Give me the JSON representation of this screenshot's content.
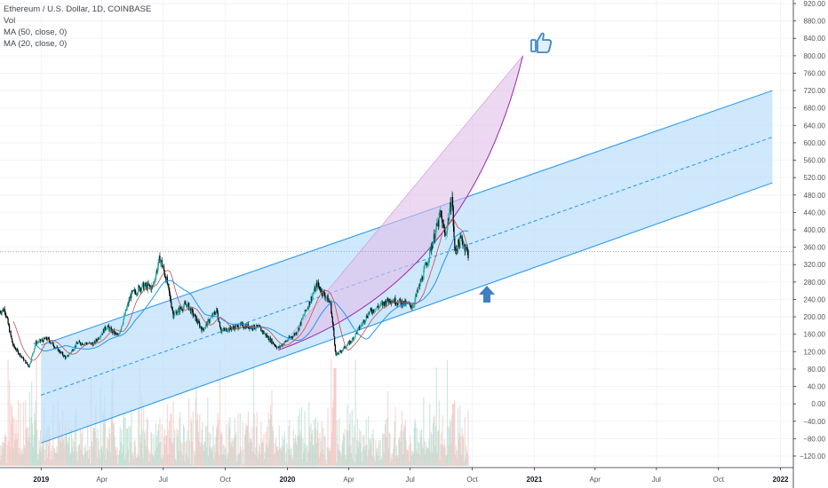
{
  "legend": {
    "title": "Ethereum / U.S. Dollar, 1D, COINBASE",
    "vol": "Vol",
    "ma50": "MA (50, close, 0)",
    "ma20": "MA (20, close, 0)"
  },
  "colors": {
    "up_candle": "#26a69a",
    "down_candle": "#000000",
    "channel_line": "#2196f3",
    "channel_fill": "#bbdefb",
    "parabola_fill": "#e1bee7",
    "parabola_line": "#9c27b0",
    "ma50": "#2196f3",
    "ma20": "#c0504d",
    "arrow": "#3f7fbf",
    "thumb": "#3f88c5"
  },
  "icons": {
    "thumbs_up": "thumbs-up-icon",
    "up_arrow": "up-arrow-icon"
  },
  "chart_data": {
    "type": "candlestick",
    "y_axis": {
      "min": -120,
      "max": 920,
      "step": 40,
      "labels": [
        "920.00",
        "880.00",
        "840.00",
        "800.00",
        "760.00",
        "720.00",
        "680.00",
        "640.00",
        "600.00",
        "560.00",
        "520.00",
        "480.00",
        "440.00",
        "400.00",
        "360.00",
        "320.00",
        "280.00",
        "240.00",
        "200.00",
        "160.00",
        "120.00",
        "80.00",
        "40.00",
        "0.00",
        "−40.00",
        "−80.00",
        "−120.00"
      ]
    },
    "x_axis": {
      "start": "2018-11-01",
      "end": "2022-01-20",
      "ticks": [
        {
          "label": "2019",
          "date": "2019-01-01",
          "bold": true
        },
        {
          "label": "Apr",
          "date": "2019-04-01",
          "bold": false
        },
        {
          "label": "Jul",
          "date": "2019-07-01",
          "bold": false
        },
        {
          "label": "Oct",
          "date": "2019-10-01",
          "bold": false
        },
        {
          "label": "2020",
          "date": "2020-01-01",
          "bold": true
        },
        {
          "label": "Apr",
          "date": "2020-04-01",
          "bold": false
        },
        {
          "label": "Jul",
          "date": "2020-07-01",
          "bold": false
        },
        {
          "label": "Oct",
          "date": "2020-10-01",
          "bold": false
        },
        {
          "label": "2021",
          "date": "2021-01-01",
          "bold": true
        },
        {
          "label": "Apr",
          "date": "2021-04-01",
          "bold": false
        },
        {
          "label": "Jul",
          "date": "2021-07-01",
          "bold": false
        },
        {
          "label": "Oct",
          "date": "2021-10-01",
          "bold": false
        },
        {
          "label": "2022",
          "date": "2022-01-01",
          "bold": true
        }
      ]
    },
    "price_anchors": [
      {
        "date": "2018-11-01",
        "price": 212
      },
      {
        "date": "2018-11-08",
        "price": 218
      },
      {
        "date": "2018-11-20",
        "price": 135
      },
      {
        "date": "2018-12-01",
        "price": 112
      },
      {
        "date": "2018-12-14",
        "price": 86
      },
      {
        "date": "2018-12-24",
        "price": 140
      },
      {
        "date": "2019-01-10",
        "price": 150
      },
      {
        "date": "2019-02-07",
        "price": 105
      },
      {
        "date": "2019-02-24",
        "price": 140
      },
      {
        "date": "2019-03-20",
        "price": 138
      },
      {
        "date": "2019-04-08",
        "price": 178
      },
      {
        "date": "2019-04-25",
        "price": 155
      },
      {
        "date": "2019-05-14",
        "price": 250
      },
      {
        "date": "2019-05-30",
        "price": 270
      },
      {
        "date": "2019-06-15",
        "price": 268
      },
      {
        "date": "2019-06-26",
        "price": 335
      },
      {
        "date": "2019-07-05",
        "price": 290
      },
      {
        "date": "2019-07-16",
        "price": 205
      },
      {
        "date": "2019-08-05",
        "price": 230
      },
      {
        "date": "2019-08-28",
        "price": 170
      },
      {
        "date": "2019-09-18",
        "price": 215
      },
      {
        "date": "2019-09-25",
        "price": 168
      },
      {
        "date": "2019-10-25",
        "price": 180
      },
      {
        "date": "2019-11-20",
        "price": 175
      },
      {
        "date": "2019-12-18",
        "price": 128
      },
      {
        "date": "2020-01-15",
        "price": 165
      },
      {
        "date": "2020-02-14",
        "price": 275
      },
      {
        "date": "2020-03-05",
        "price": 230
      },
      {
        "date": "2020-03-13",
        "price": 110
      },
      {
        "date": "2020-04-05",
        "price": 145
      },
      {
        "date": "2020-05-01",
        "price": 210
      },
      {
        "date": "2020-06-01",
        "price": 240
      },
      {
        "date": "2020-07-05",
        "price": 225
      },
      {
        "date": "2020-07-25",
        "price": 320
      },
      {
        "date": "2020-08-15",
        "price": 435
      },
      {
        "date": "2020-08-22",
        "price": 385
      },
      {
        "date": "2020-09-01",
        "price": 475
      },
      {
        "date": "2020-09-05",
        "price": 350
      },
      {
        "date": "2020-09-15",
        "price": 380
      },
      {
        "date": "2020-09-25",
        "price": 345
      }
    ],
    "channel": {
      "upper": [
        {
          "date": "2019-01-01",
          "price": 135
        },
        {
          "date": "2021-12-20",
          "price": 720
        }
      ],
      "middle": [
        {
          "date": "2019-01-01",
          "price": 20
        },
        {
          "date": "2021-12-20",
          "price": 613
        }
      ],
      "lower": [
        {
          "date": "2019-01-01",
          "price": -90
        },
        {
          "date": "2021-12-20",
          "price": 508
        }
      ]
    },
    "parabola": {
      "start": {
        "date": "2019-12-18",
        "price": 123
      },
      "end": {
        "date": "2020-12-15",
        "price": 800
      },
      "through": {
        "date": "2020-09-25",
        "price": 330
      }
    },
    "current_price": 350
  }
}
